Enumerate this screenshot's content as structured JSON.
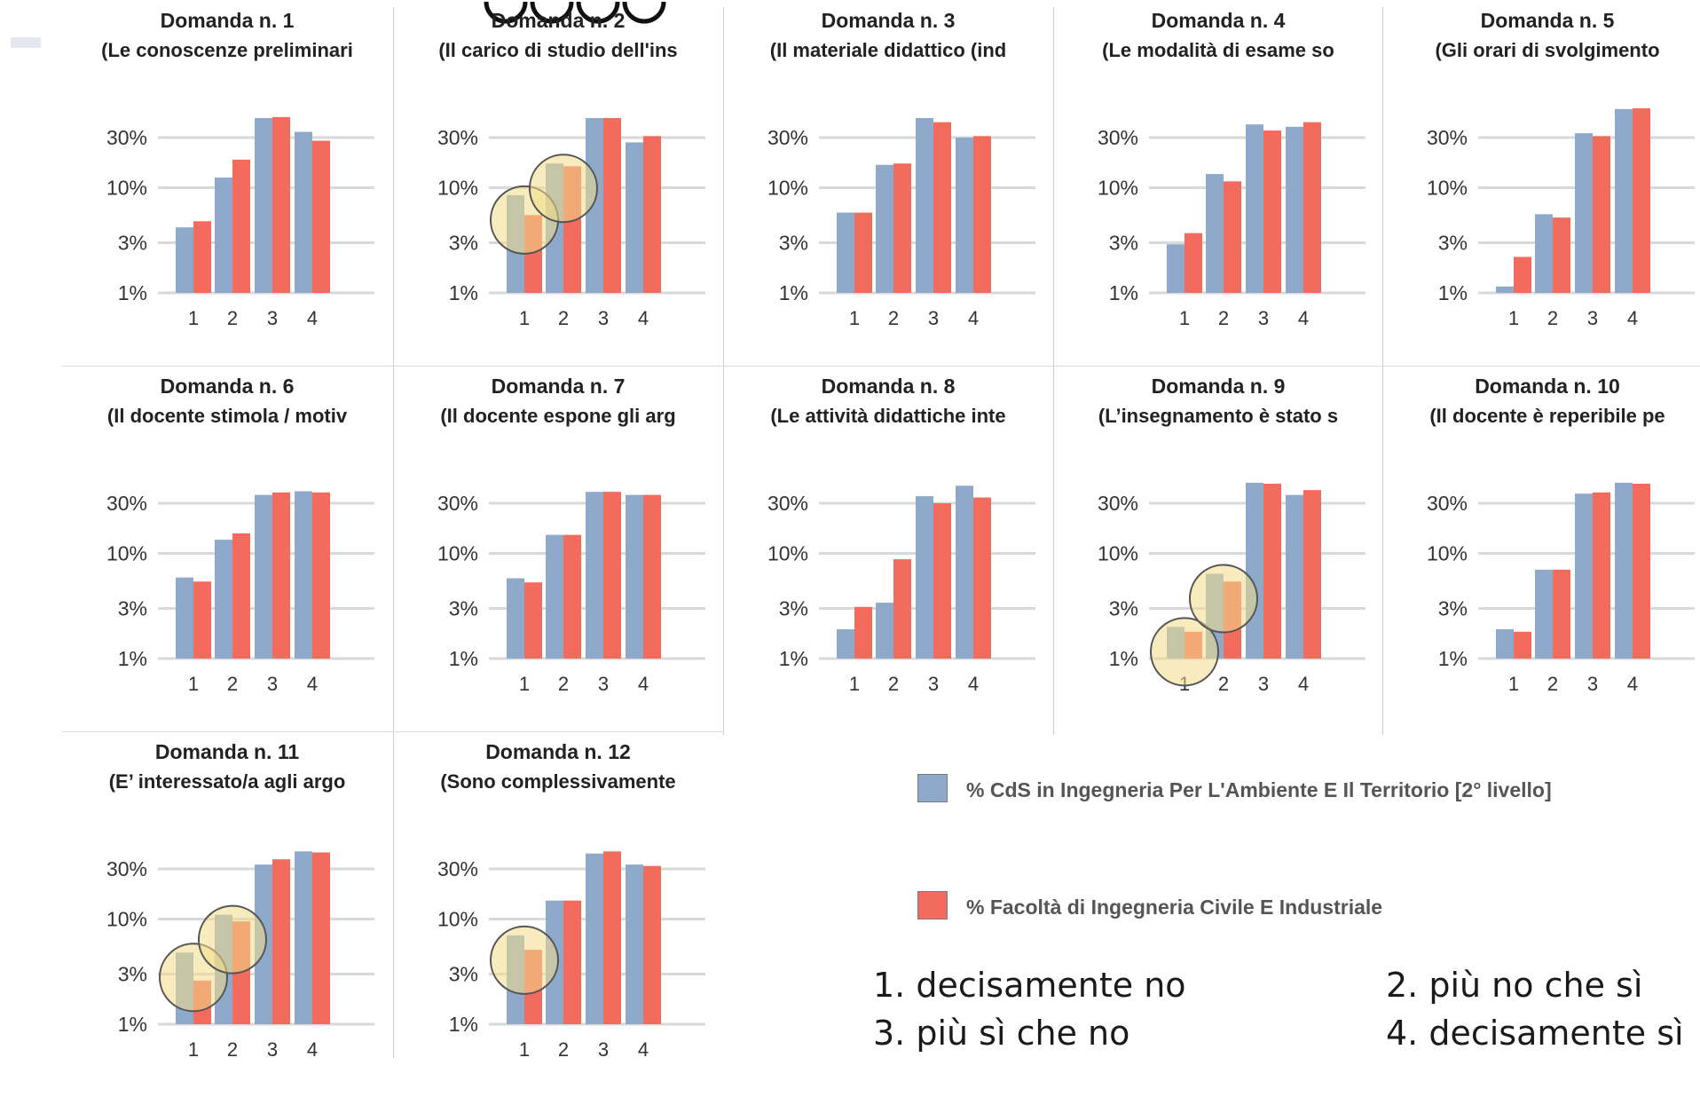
{
  "colors": {
    "cds": "#8fa9cb",
    "facolta": "#f36b5c",
    "highlight": "#f3dc8a",
    "grid": "#d9d9d9"
  },
  "legend": {
    "cds": "% CdS in Ingegneria Per L'Ambiente E Il Territorio [2° livello]",
    "facolta": "% Facoltà di Ingegneria Civile E Industriale"
  },
  "scale_key": {
    "s1": "1. decisamente no",
    "s2": "2. più no che sì",
    "s3": "3. più sì che no",
    "s4": "4. decisamente sì"
  },
  "chart_data": [
    {
      "type": "bar",
      "title": "Domanda n. 1",
      "subtitle": "(Le  conoscenze preliminari",
      "categories": [
        "1",
        "2",
        "3",
        "4"
      ],
      "yscale": "log",
      "yticks": [
        "1%",
        "3%",
        "10%",
        "30%"
      ],
      "series": [
        {
          "name": "% CdS in Ingegneria Per L'Ambiente E Il Territorio [2° livello]",
          "values": [
            4.2,
            12.5,
            46,
            34
          ]
        },
        {
          "name": "% Facoltà di Ingegneria Civile E Industriale",
          "values": [
            4.8,
            18.5,
            47,
            28
          ]
        }
      ],
      "highlights": []
    },
    {
      "type": "bar",
      "title": "Domanda n. 2",
      "subtitle": "(Il carico di studio dell'ins",
      "categories": [
        "1",
        "2",
        "3",
        "4"
      ],
      "yscale": "log",
      "yticks": [
        "1%",
        "3%",
        "10%",
        "30%"
      ],
      "series": [
        {
          "name": "% CdS in Ingegneria Per L'Ambiente E Il Territorio [2° livello]",
          "values": [
            8.5,
            17,
            46,
            27
          ]
        },
        {
          "name": "% Facoltà di Ingegneria Civile E Industriale",
          "values": [
            5.5,
            16,
            46,
            31
          ]
        }
      ],
      "highlights": [
        1,
        2
      ]
    },
    {
      "type": "bar",
      "title": "Domanda n. 3",
      "subtitle": "(Il materiale didattico (ind",
      "categories": [
        "1",
        "2",
        "3",
        "4"
      ],
      "yscale": "log",
      "yticks": [
        "1%",
        "3%",
        "10%",
        "30%"
      ],
      "series": [
        {
          "name": "% CdS in Ingegneria Per L'Ambiente E Il Territorio [2° livello]",
          "values": [
            5.8,
            16.5,
            46,
            30
          ]
        },
        {
          "name": "% Facoltà di Ingegneria Civile E Industriale",
          "values": [
            5.8,
            17,
            42,
            31
          ]
        }
      ],
      "highlights": []
    },
    {
      "type": "bar",
      "title": "Domanda n. 4",
      "subtitle": "(Le modalità di esame so",
      "categories": [
        "1",
        "2",
        "3",
        "4"
      ],
      "yscale": "log",
      "yticks": [
        "1%",
        "3%",
        "10%",
        "30%"
      ],
      "series": [
        {
          "name": "% CdS in Ingegneria Per L'Ambiente E Il Territorio [2° livello]",
          "values": [
            2.9,
            13.5,
            40,
            38
          ]
        },
        {
          "name": "% Facoltà di Ingegneria Civile E Industriale",
          "values": [
            3.7,
            11.5,
            35,
            42
          ]
        }
      ],
      "highlights": []
    },
    {
      "type": "bar",
      "title": "Domanda n. 5",
      "subtitle": "(Gli orari di svolgimento",
      "categories": [
        "1",
        "2",
        "3",
        "4"
      ],
      "yscale": "log",
      "yticks": [
        "1%",
        "3%",
        "10%",
        "30%"
      ],
      "series": [
        {
          "name": "% CdS in Ingegneria Per L'Ambiente E Il Territorio [2° livello]",
          "values": [
            1.15,
            5.6,
            33,
            56
          ]
        },
        {
          "name": "% Facoltà di Ingegneria Civile E Industriale",
          "values": [
            2.2,
            5.2,
            31,
            57
          ]
        }
      ],
      "highlights": []
    },
    {
      "type": "bar",
      "title": "Domanda n. 6",
      "subtitle": "(Il docente stimola / motiv",
      "categories": [
        "1",
        "2",
        "3",
        "4"
      ],
      "yscale": "log",
      "yticks": [
        "1%",
        "3%",
        "10%",
        "30%"
      ],
      "series": [
        {
          "name": "% CdS in Ingegneria Per L'Ambiente E Il Territorio [2° livello]",
          "values": [
            5.9,
            13.5,
            36,
            39
          ]
        },
        {
          "name": "% Facoltà di Ingegneria Civile E Industriale",
          "values": [
            5.4,
            15.5,
            38,
            38
          ]
        }
      ],
      "highlights": []
    },
    {
      "type": "bar",
      "title": "Domanda n. 7",
      "subtitle": "(Il docente espone gli arg",
      "categories": [
        "1",
        "2",
        "3",
        "4"
      ],
      "yscale": "log",
      "yticks": [
        "1%",
        "3%",
        "10%",
        "30%"
      ],
      "series": [
        {
          "name": "% CdS in Ingegneria Per L'Ambiente E Il Territorio [2° livello]",
          "values": [
            5.8,
            15,
            38.5,
            36
          ]
        },
        {
          "name": "% Facoltà di Ingegneria Civile E Industriale",
          "values": [
            5.3,
            15,
            38.5,
            36
          ]
        }
      ],
      "highlights": []
    },
    {
      "type": "bar",
      "title": "Domanda n. 8",
      "subtitle": "(Le attività didattiche inte",
      "categories": [
        "1",
        "2",
        "3",
        "4"
      ],
      "yscale": "log",
      "yticks": [
        "1%",
        "3%",
        "10%",
        "30%"
      ],
      "series": [
        {
          "name": "% CdS in Ingegneria Per L'Ambiente E Il Territorio [2° livello]",
          "values": [
            1.9,
            3.4,
            35,
            44
          ]
        },
        {
          "name": "% Facoltà di Ingegneria Civile E Industriale",
          "values": [
            3.1,
            8.8,
            30,
            34
          ]
        }
      ],
      "highlights": []
    },
    {
      "type": "bar",
      "title": "Domanda n. 9",
      "subtitle": "(L’insegnamento  è  stato s",
      "categories": [
        "1",
        "2",
        "3",
        "4"
      ],
      "yscale": "log",
      "yticks": [
        "1%",
        "3%",
        "10%",
        "30%"
      ],
      "series": [
        {
          "name": "% CdS in Ingegneria Per L'Ambiente E Il Territorio [2° livello]",
          "values": [
            2.0,
            6.4,
            47,
            36
          ]
        },
        {
          "name": "% Facoltà di Ingegneria Civile E Industriale",
          "values": [
            1.8,
            5.4,
            46,
            40
          ]
        }
      ],
      "highlights": [
        1,
        2
      ]
    },
    {
      "type": "bar",
      "title": "Domanda n. 10",
      "subtitle": "(Il docente è reperibile pe",
      "categories": [
        "1",
        "2",
        "3",
        "4"
      ],
      "yscale": "log",
      "yticks": [
        "1%",
        "3%",
        "10%",
        "30%"
      ],
      "series": [
        {
          "name": "% CdS in Ingegneria Per L'Ambiente E Il Territorio [2° livello]",
          "values": [
            1.9,
            7.0,
            37,
            47
          ]
        },
        {
          "name": "% Facoltà di Ingegneria Civile E Industriale",
          "values": [
            1.8,
            7.0,
            38,
            46
          ]
        }
      ],
      "highlights": []
    },
    {
      "type": "bar",
      "title": "Domanda n. 11",
      "subtitle": "(E’ interessato/a  agli argo",
      "categories": [
        "1",
        "2",
        "3",
        "4"
      ],
      "yscale": "log",
      "yticks": [
        "1%",
        "3%",
        "10%",
        "30%"
      ],
      "series": [
        {
          "name": "% CdS in Ingegneria Per L'Ambiente E Il Territorio [2° livello]",
          "values": [
            4.8,
            11,
            33,
            44
          ]
        },
        {
          "name": "% Facoltà di Ingegneria Civile E Industriale",
          "values": [
            2.6,
            9.5,
            37,
            43
          ]
        }
      ],
      "highlights": [
        1,
        2
      ]
    },
    {
      "type": "bar",
      "title": "Domanda n. 12",
      "subtitle": "(Sono complessivamente",
      "categories": [
        "1",
        "2",
        "3",
        "4"
      ],
      "yscale": "log",
      "yticks": [
        "1%",
        "3%",
        "10%",
        "30%"
      ],
      "series": [
        {
          "name": "% CdS in Ingegneria Per L'Ambiente E Il Territorio [2° livello]",
          "values": [
            7.0,
            15,
            42,
            33
          ]
        },
        {
          "name": "% Facoltà di Ingegneria Civile E Industriale",
          "values": [
            5.1,
            15,
            44,
            32
          ]
        }
      ],
      "highlights": [
        1
      ]
    }
  ]
}
